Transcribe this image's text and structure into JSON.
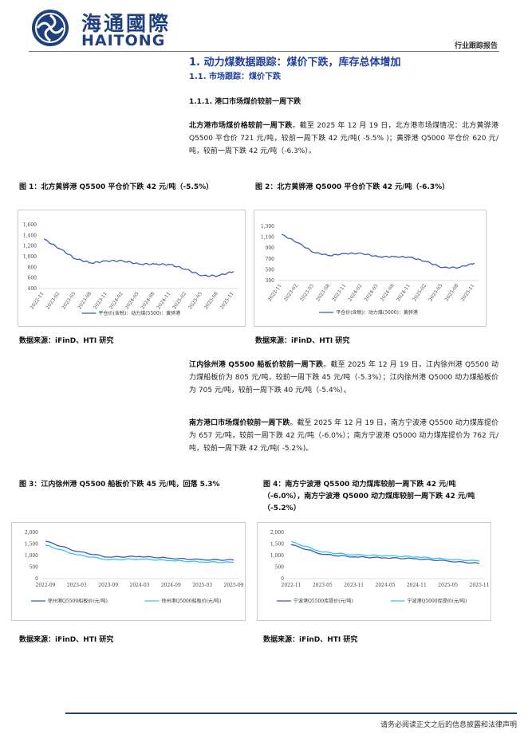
{
  "header": {
    "logo_cn": "海通國際",
    "logo_en": "HAITONG",
    "doc_type": "行业跟踪报告"
  },
  "section": {
    "h1": "1.  动力煤数据跟踪：煤价下跌，库存总体增加",
    "h2": "1.1.  市场跟踪：煤价下跌",
    "h3": "1.1.1.      港口市场煤价较前一周下跌"
  },
  "paragraphs": {
    "p1_bold": "北方港市场煤价格较前一周下跌",
    "p1_rest": "。截至 2025 年 12 月 19 日，北方港市场煤情况：北方黄骅港 Q5500 平仓价 721 元/吨，较前一周下跌 42 元/吨( -5.5% )；黄骅港 Q5000 平仓价 620 元/吨，较前一周下跌 42 元/吨（-6.3%）。",
    "p2_bold": "江内徐州港 Q5500 船板价较前一周下跌",
    "p2_rest": "。截至 2025 年 12 月 19 日，江内徐州港 Q5500 动力煤船板价为 805 元/吨，较前一周下跌 45 元/吨（-5.3%）；江内徐州港 Q5000 动力煤船板价为 705 元/吨，较前一周下跌 40 元/吨（-5.4%）。",
    "p3_bold": "南方港口市场煤价较前一周下跌",
    "p3_rest": "。截至 2025 年 12 月 19 日，南方宁波港 Q5500 动力煤库提价为 657 元/吨，较前一周下跌 42 元/吨（-6.0%）；南方宁波港 Q5000 动力煤库提价为 762 元/吨，较前一周下跌 42 元/吨( -5.2%)。"
  },
  "figures": {
    "fig1_caption": "图 1：北方黄骅港 Q5500 平仓价下跌 42 元/吨（-5.5%）",
    "fig2_caption": "图 2：北方黄骅港 Q5000 平仓价下跌 42 元/吨（-6.3%）",
    "fig3_caption": "图 3：江内徐州港 Q5500 船板价下跌 45 元/吨，回落 5.3%",
    "fig4_caption": "图 4：南方宁波港 Q5500 动力煤库较前一周下跌 42 元/吨（-6.0%），南方宁波港 Q5000 动力煤库较前一周下跌 42 元/吨（-5.2%）",
    "source": "数据来源：iFinD、HTI 研究"
  },
  "footer": {
    "disclaimer": "请务必阅读正文之后的信息披露和法律声明"
  },
  "colors": {
    "brand": "#1f3f7f",
    "series_dark": "#3a5bbf",
    "series_light": "#34c3f0"
  },
  "chart_data": [
    {
      "type": "line",
      "x": [
        "2022-11",
        "2023-02",
        "2023-05",
        "2023-08",
        "2023-11",
        "2024-02",
        "2024-05",
        "2024-08",
        "2024-11",
        "2025-02",
        "2025-05",
        "2025-08",
        "2025-11"
      ],
      "series": [
        {
          "name": "平仓价(含税)：动力煤(5500)：黄骅港",
          "values": [
            1330,
            1150,
            960,
            880,
            920,
            920,
            860,
            860,
            850,
            760,
            640,
            640,
            721
          ]
        }
      ],
      "yticks": [
        "1,600",
        "1,400",
        "1,200",
        "1,000",
        "800",
        "600",
        "400"
      ],
      "ylim": [
        400,
        1600
      ]
    },
    {
      "type": "line",
      "x": [
        "2022-11",
        "2023-02",
        "2023-05",
        "2023-08",
        "2023-11",
        "2024-02",
        "2024-05",
        "2024-08",
        "2024-11",
        "2025-02",
        "2025-05",
        "2025-08",
        "2025-11"
      ],
      "series": [
        {
          "name": "平仓价(含税)：动力煤(5000)：黄骅港",
          "values": [
            1150,
            1000,
            820,
            760,
            800,
            800,
            740,
            740,
            730,
            650,
            540,
            540,
            620
          ]
        }
      ],
      "yticks": [
        "1,300",
        "1,100",
        "900",
        "700",
        "500",
        "300"
      ],
      "ylim": [
        300,
        1300
      ]
    },
    {
      "type": "line",
      "x": [
        "2022-09",
        "2023-03",
        "2023-09",
        "2024-03",
        "2024-09",
        "2025-03",
        "2025-09"
      ],
      "series": [
        {
          "name": "徐州港Q5500船板价(元/吨)",
          "values": [
            1620,
            1180,
            930,
            960,
            880,
            820,
            805
          ]
        },
        {
          "name": "徐州港Q5000船板价(元/吨)",
          "values": [
            1450,
            1030,
            820,
            850,
            780,
            720,
            705
          ]
        }
      ],
      "yticks": [
        "2,000",
        "1,500",
        "1,000",
        "500",
        "0"
      ],
      "ylim": [
        0,
        2000
      ]
    },
    {
      "type": "line",
      "x": [
        "2022-11",
        "2023-05",
        "2023-11",
        "2024-05",
        "2024-11",
        "2025-05",
        "2025-11"
      ],
      "series": [
        {
          "name": "宁波港Q5500库提价(元/吨)",
          "values": [
            1470,
            1050,
            940,
            900,
            860,
            760,
            657
          ]
        },
        {
          "name": "宁波港Q5000库提价(元/吨)",
          "values": [
            1600,
            1150,
            1030,
            990,
            940,
            840,
            762
          ]
        }
      ],
      "yticks": [
        "2,000",
        "1,500",
        "1,000",
        "500",
        "0"
      ],
      "ylim": [
        0,
        2000
      ]
    }
  ]
}
